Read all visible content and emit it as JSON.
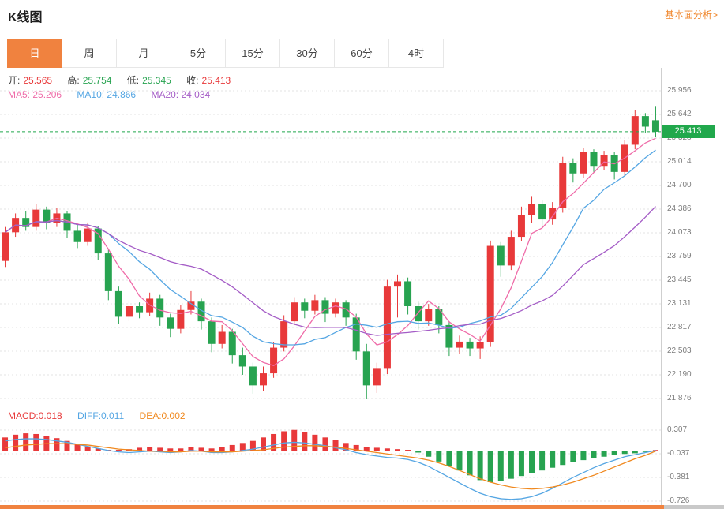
{
  "header": {
    "title": "K线图",
    "link_label": "基本面分析>"
  },
  "tabs": [
    {
      "label": "日",
      "active": true
    },
    {
      "label": "周",
      "active": false
    },
    {
      "label": "月",
      "active": false
    },
    {
      "label": "5分",
      "active": false
    },
    {
      "label": "15分",
      "active": false
    },
    {
      "label": "30分",
      "active": false
    },
    {
      "label": "60分",
      "active": false
    },
    {
      "label": "4时",
      "active": false
    }
  ],
  "ohlc_row": {
    "items": [
      {
        "label": "开:",
        "value": "25.565",
        "color": "#e8393a"
      },
      {
        "label": "高:",
        "value": "25.754",
        "color": "#27a350"
      },
      {
        "label": "低:",
        "value": "25.345",
        "color": "#27a350"
      },
      {
        "label": "收:",
        "value": "25.413",
        "color": "#e8393a"
      }
    ]
  },
  "ma_row": {
    "items": [
      {
        "text": "MA5: 25.206",
        "color": "#ef6ba8"
      },
      {
        "text": "MA10: 24.866",
        "color": "#55a6e3"
      },
      {
        "text": "MA20: 24.034",
        "color": "#a45cc6"
      }
    ]
  },
  "macd_row": {
    "items": [
      {
        "text": "MACD:0.018",
        "color": "#e8393a"
      },
      {
        "text": "DIFF:0.011",
        "color": "#55a6e3"
      },
      {
        "text": "DEA:0.002",
        "color": "#f0891f"
      }
    ]
  },
  "colors": {
    "up": "#e8393a",
    "down": "#27a350",
    "ma5": "#ef6ba8",
    "ma10": "#55a6e3",
    "ma20": "#a45cc6",
    "diff": "#55a6e3",
    "dea": "#f0891f",
    "accent_orange": "#f0823f",
    "link_orange": "#f0882f",
    "price_green": "#21a84c",
    "grid": "#e3e3e3",
    "axis_text": "#7d7d7d"
  },
  "chart_data": {
    "type": "candlestick",
    "title": "K线图",
    "ylim": [
      21.876,
      25.956
    ],
    "y_axis_labels": [
      "25.956",
      "25.642",
      "25.328",
      "25.014",
      "24.700",
      "24.386",
      "24.073",
      "23.759",
      "23.445",
      "23.131",
      "22.817",
      "22.503",
      "22.190",
      "21.876"
    ],
    "current_price": 25.413,
    "current_price_label": "25.413",
    "ohlc": {
      "open": 25.565,
      "high": 25.754,
      "low": 25.345,
      "close": 25.413
    },
    "ma_values": {
      "ma5": 25.206,
      "ma10": 24.866,
      "ma20": 24.034
    },
    "candles_ohlc": [
      [
        23.7,
        24.15,
        23.62,
        24.08
      ],
      [
        24.08,
        24.33,
        24.02,
        24.27
      ],
      [
        24.27,
        24.36,
        24.1,
        24.15
      ],
      [
        24.15,
        24.45,
        24.1,
        24.38
      ],
      [
        24.38,
        24.42,
        24.12,
        24.2
      ],
      [
        24.2,
        24.4,
        24.15,
        24.33
      ],
      [
        24.33,
        24.36,
        24.0,
        24.1
      ],
      [
        24.1,
        24.18,
        23.87,
        23.95
      ],
      [
        23.95,
        24.21,
        23.9,
        24.13
      ],
      [
        24.13,
        24.16,
        23.71,
        23.8
      ],
      [
        23.8,
        23.85,
        23.18,
        23.3
      ],
      [
        23.3,
        23.36,
        22.87,
        22.96
      ],
      [
        22.96,
        23.18,
        22.9,
        23.1
      ],
      [
        23.1,
        23.15,
        22.94,
        23.02
      ],
      [
        23.02,
        23.28,
        22.97,
        23.2
      ],
      [
        23.2,
        23.25,
        22.84,
        22.95
      ],
      [
        22.95,
        23.0,
        22.69,
        22.8
      ],
      [
        22.8,
        23.12,
        22.74,
        23.05
      ],
      [
        23.05,
        23.3,
        22.99,
        23.16
      ],
      [
        23.16,
        23.2,
        22.79,
        22.9
      ],
      [
        22.9,
        22.95,
        22.49,
        22.6
      ],
      [
        22.6,
        22.85,
        22.54,
        22.76
      ],
      [
        22.76,
        22.8,
        22.34,
        22.45
      ],
      [
        22.45,
        22.55,
        22.19,
        22.3
      ],
      [
        22.3,
        22.35,
        21.94,
        22.05
      ],
      [
        22.05,
        22.3,
        21.97,
        22.21
      ],
      [
        22.21,
        22.62,
        22.15,
        22.55
      ],
      [
        22.55,
        22.98,
        22.5,
        22.9
      ],
      [
        22.9,
        23.22,
        22.85,
        23.15
      ],
      [
        23.15,
        23.2,
        22.94,
        23.04
      ],
      [
        23.04,
        23.25,
        22.99,
        23.18
      ],
      [
        23.18,
        23.22,
        22.89,
        23.0
      ],
      [
        23.0,
        23.2,
        22.95,
        23.15
      ],
      [
        23.15,
        23.18,
        22.84,
        22.95
      ],
      [
        22.95,
        23.0,
        22.39,
        22.5
      ],
      [
        22.5,
        22.6,
        21.876,
        22.05
      ],
      [
        22.05,
        22.35,
        21.95,
        22.28
      ],
      [
        22.28,
        23.45,
        22.2,
        23.36
      ],
      [
        23.36,
        23.52,
        22.95,
        23.43
      ],
      [
        23.43,
        23.48,
        22.99,
        23.1
      ],
      [
        23.1,
        23.16,
        22.79,
        22.9
      ],
      [
        22.9,
        23.13,
        22.84,
        23.06
      ],
      [
        23.06,
        23.1,
        22.74,
        22.85
      ],
      [
        22.85,
        22.9,
        22.44,
        22.55
      ],
      [
        22.55,
        22.71,
        22.47,
        22.63
      ],
      [
        22.63,
        22.68,
        22.44,
        22.54
      ],
      [
        22.54,
        22.7,
        22.4,
        22.62
      ],
      [
        22.62,
        23.97,
        22.56,
        23.9
      ],
      [
        23.9,
        23.95,
        23.49,
        23.64
      ],
      [
        23.64,
        24.1,
        23.58,
        24.02
      ],
      [
        24.02,
        24.42,
        23.96,
        24.31
      ],
      [
        24.31,
        24.55,
        24.2,
        24.46
      ],
      [
        24.46,
        24.5,
        24.14,
        24.25
      ],
      [
        24.25,
        24.48,
        24.18,
        24.4
      ],
      [
        24.4,
        25.08,
        24.34,
        25.0
      ],
      [
        25.0,
        25.06,
        24.74,
        24.86
      ],
      [
        24.86,
        25.2,
        24.8,
        25.14
      ],
      [
        25.14,
        25.18,
        24.88,
        24.96
      ],
      [
        24.96,
        25.16,
        24.9,
        25.1
      ],
      [
        25.1,
        25.14,
        24.78,
        24.88
      ],
      [
        24.88,
        25.3,
        24.83,
        25.24
      ],
      [
        25.24,
        25.7,
        25.18,
        25.62
      ],
      [
        25.62,
        25.66,
        25.4,
        25.48
      ],
      [
        25.565,
        25.754,
        25.345,
        25.413
      ]
    ],
    "ma_periods": [
      5,
      10,
      20
    ],
    "macd": {
      "values": {
        "macd": 0.018,
        "diff": 0.011,
        "dea": 0.002
      },
      "y_axis_labels": [
        "0.307",
        "-0.037",
        "-0.381",
        "-0.726"
      ],
      "hist": [
        0.2,
        0.24,
        0.26,
        0.25,
        0.22,
        0.19,
        0.15,
        0.11,
        0.07,
        0.04,
        0.02,
        0.02,
        0.03,
        0.05,
        0.06,
        0.05,
        0.04,
        0.04,
        0.06,
        0.05,
        0.04,
        0.06,
        0.09,
        0.12,
        0.15,
        0.2,
        0.25,
        0.29,
        0.31,
        0.28,
        0.24,
        0.2,
        0.16,
        0.12,
        0.09,
        0.06,
        0.05,
        0.04,
        0.03,
        0.02,
        -0.02,
        -0.08,
        -0.15,
        -0.22,
        -0.28,
        -0.35,
        -0.42,
        -0.45,
        -0.43,
        -0.4,
        -0.36,
        -0.32,
        -0.28,
        -0.24,
        -0.2,
        -0.16,
        -0.13,
        -0.1,
        -0.08,
        -0.06,
        -0.04,
        -0.03,
        -0.01,
        0.018
      ],
      "diff": [
        0.15,
        0.17,
        0.18,
        0.18,
        0.17,
        0.15,
        0.13,
        0.1,
        0.07,
        0.04,
        0.01,
        -0.01,
        -0.02,
        -0.01,
        0.0,
        -0.01,
        -0.02,
        -0.01,
        0.01,
        0.0,
        -0.02,
        -0.02,
        -0.01,
        0.01,
        0.03,
        0.06,
        0.09,
        0.12,
        0.13,
        0.12,
        0.1,
        0.08,
        0.05,
        0.02,
        -0.02,
        -0.05,
        -0.07,
        -0.09,
        -0.1,
        -0.12,
        -0.16,
        -0.22,
        -0.3,
        -0.38,
        -0.46,
        -0.54,
        -0.61,
        -0.66,
        -0.69,
        -0.7,
        -0.69,
        -0.66,
        -0.61,
        -0.54,
        -0.46,
        -0.38,
        -0.31,
        -0.24,
        -0.18,
        -0.13,
        -0.08,
        -0.05,
        -0.02,
        0.011
      ],
      "dea": [
        0.05,
        0.07,
        0.09,
        0.1,
        0.11,
        0.11,
        0.11,
        0.1,
        0.09,
        0.07,
        0.05,
        0.03,
        0.02,
        0.01,
        0.0,
        0.0,
        -0.01,
        -0.01,
        0.0,
        0.0,
        -0.01,
        -0.01,
        -0.01,
        0.0,
        0.01,
        0.02,
        0.04,
        0.06,
        0.07,
        0.08,
        0.08,
        0.07,
        0.06,
        0.04,
        0.02,
        0.0,
        -0.02,
        -0.04,
        -0.06,
        -0.08,
        -0.1,
        -0.13,
        -0.17,
        -0.22,
        -0.28,
        -0.34,
        -0.4,
        -0.45,
        -0.49,
        -0.52,
        -0.54,
        -0.55,
        -0.54,
        -0.52,
        -0.49,
        -0.45,
        -0.4,
        -0.35,
        -0.29,
        -0.23,
        -0.17,
        -0.11,
        -0.06,
        0.002
      ]
    }
  }
}
